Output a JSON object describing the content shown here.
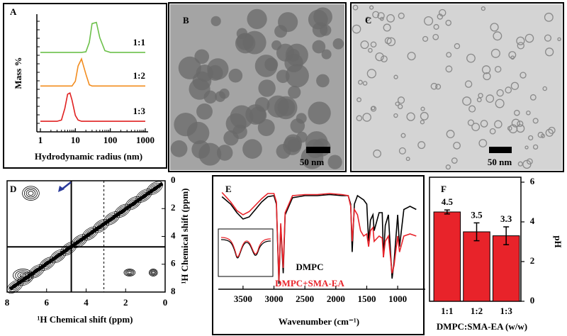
{
  "chart_data": [
    {
      "type": "line",
      "label": "A",
      "xlabel": "Hydrodynamic radius (nm)",
      "ylabel": "Mass %",
      "xscale": "log",
      "xlim": [
        1,
        1000
      ],
      "xticks": [
        1,
        10,
        100,
        1000
      ],
      "ylim": [
        0,
        10
      ],
      "x": [
        1,
        3,
        4,
        5,
        6,
        7,
        8,
        10,
        12,
        15,
        20,
        25,
        30,
        40,
        50,
        70,
        100,
        1000
      ],
      "series": [
        {
          "name": "1:1",
          "color": "#6cc04a",
          "values": [
            6.75,
            6.75,
            6.75,
            6.75,
            6.75,
            6.75,
            6.75,
            6.75,
            6.75,
            6.75,
            6.8,
            7.6,
            9.2,
            9.3,
            8.0,
            6.9,
            6.75,
            6.75
          ]
        },
        {
          "name": "1:2",
          "color": "#f28c1e",
          "values": [
            3.9,
            3.9,
            3.9,
            3.9,
            3.9,
            3.9,
            3.9,
            4.3,
            5.6,
            6.2,
            4.9,
            4.0,
            3.9,
            3.9,
            3.9,
            3.9,
            3.9,
            3.9
          ]
        },
        {
          "name": "1:3",
          "color": "#e02020",
          "values": [
            0.9,
            0.9,
            1.0,
            2.0,
            3.2,
            3.3,
            2.7,
            1.4,
            1.0,
            0.9,
            0.9,
            0.9,
            0.9,
            0.9,
            0.9,
            0.9,
            0.9,
            0.9
          ]
        }
      ]
    },
    {
      "type": "contour",
      "label": "D",
      "xlabel": "¹H Chemical shift (ppm)",
      "ylabel": "¹H Chemical shift (ppm)",
      "xlim": [
        8,
        0
      ],
      "ylim": [
        0,
        8
      ],
      "xticks": [
        8,
        6,
        4,
        2,
        0
      ],
      "yticks": [
        0,
        2,
        4,
        6,
        8
      ]
    },
    {
      "type": "line",
      "label": "E",
      "xlabel": "Wavenumber (cm⁻¹)",
      "xlim": [
        3900,
        600
      ],
      "xticks": [
        3500,
        3000,
        2500,
        2000,
        1500,
        1000
      ],
      "ylim": [
        0,
        100
      ],
      "x": [
        3840,
        3700,
        3600,
        3500,
        3400,
        3300,
        3200,
        3100,
        3000,
        2960,
        2920,
        2890,
        2850,
        2820,
        2700,
        2500,
        2300,
        2100,
        1900,
        1800,
        1760,
        1735,
        1700,
        1650,
        1600,
        1550,
        1500,
        1470,
        1440,
        1400,
        1380,
        1300,
        1250,
        1230,
        1200,
        1150,
        1090,
        1060,
        1000,
        970,
        900,
        800,
        700
      ],
      "series": [
        {
          "name": "DMPC",
          "color": "#000000",
          "values": [
            87,
            80,
            72,
            66,
            68,
            75,
            82,
            87,
            88,
            80,
            5,
            60,
            15,
            70,
            86,
            88,
            88,
            89,
            88,
            88,
            80,
            35,
            80,
            88,
            86,
            84,
            80,
            45,
            65,
            70,
            55,
            72,
            72,
            30,
            60,
            70,
            10,
            25,
            70,
            40,
            75,
            78,
            75
          ]
        },
        {
          "name": "DMPC+SMA-EA",
          "color": "#e8232a",
          "values": [
            91,
            82,
            74,
            70,
            73,
            79,
            85,
            90,
            90,
            82,
            8,
            62,
            20,
            72,
            88,
            89,
            89,
            90,
            89,
            88,
            78,
            45,
            75,
            70,
            55,
            50,
            52,
            40,
            55,
            58,
            45,
            50,
            48,
            30,
            45,
            50,
            15,
            22,
            50,
            35,
            50,
            52,
            50
          ]
        }
      ]
    },
    {
      "type": "bar",
      "label": "F",
      "xlabel": "DMPC:SMA-EA (w/w)",
      "ylabel": "pH",
      "y_axis": "right",
      "categories": [
        "1:1",
        "1:2",
        "1:3"
      ],
      "values": [
        4.5,
        3.5,
        3.3
      ],
      "errors": [
        0.1,
        0.45,
        0.45
      ],
      "color": "#e8232a",
      "ylim": [
        0,
        6
      ],
      "yticks": [
        0,
        2,
        4,
        6
      ]
    }
  ],
  "images": [
    {
      "label": "B",
      "scale_bar": "50 nm"
    },
    {
      "label": "C",
      "scale_bar": "50 nm"
    }
  ]
}
